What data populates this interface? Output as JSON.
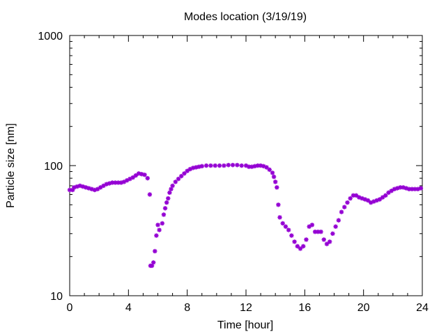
{
  "chart_data": {
    "type": "scatter",
    "title": "Modes location (3/19/19)",
    "xlabel": "Time [hour]",
    "ylabel": "Particle size [nm]",
    "xlim": [
      0,
      24
    ],
    "ylim": [
      10,
      1000
    ],
    "y_scale": "log",
    "x_ticks": [
      0,
      4,
      8,
      12,
      16,
      20,
      24
    ],
    "x_tick_labels": [
      "0",
      "4",
      "8",
      "12",
      "16",
      "20",
      "24"
    ],
    "y_ticks": [
      10,
      100,
      1000
    ],
    "y_tick_labels": [
      "10",
      "100",
      "1000"
    ],
    "marker": "asterisk",
    "color": "#9400d3",
    "grid": false,
    "series": [
      {
        "values": [
          [
            0.0,
            65
          ],
          [
            0.2,
            65
          ],
          [
            0.3,
            68
          ],
          [
            0.5,
            69
          ],
          [
            0.7,
            70
          ],
          [
            0.9,
            69
          ],
          [
            1.1,
            68
          ],
          [
            1.3,
            67
          ],
          [
            1.5,
            66
          ],
          [
            1.7,
            65
          ],
          [
            1.9,
            66
          ],
          [
            2.1,
            68
          ],
          [
            2.3,
            70
          ],
          [
            2.5,
            72
          ],
          [
            2.7,
            73
          ],
          [
            2.9,
            74
          ],
          [
            3.1,
            74
          ],
          [
            3.3,
            74
          ],
          [
            3.5,
            74
          ],
          [
            3.7,
            75
          ],
          [
            3.9,
            77
          ],
          [
            4.1,
            79
          ],
          [
            4.3,
            81
          ],
          [
            4.5,
            84
          ],
          [
            4.7,
            87
          ],
          [
            4.9,
            86
          ],
          [
            5.1,
            85
          ],
          [
            5.3,
            80
          ],
          [
            5.45,
            60
          ],
          [
            5.5,
            17
          ],
          [
            5.6,
            17
          ],
          [
            5.7,
            18
          ],
          [
            5.8,
            22
          ],
          [
            5.9,
            29
          ],
          [
            6.0,
            35
          ],
          [
            6.1,
            32
          ],
          [
            6.3,
            36
          ],
          [
            6.4,
            42
          ],
          [
            6.5,
            47
          ],
          [
            6.6,
            52
          ],
          [
            6.7,
            56
          ],
          [
            6.8,
            62
          ],
          [
            6.9,
            66
          ],
          [
            7.0,
            70
          ],
          [
            7.2,
            75
          ],
          [
            7.4,
            79
          ],
          [
            7.6,
            83
          ],
          [
            7.8,
            87
          ],
          [
            8.0,
            91
          ],
          [
            8.2,
            94
          ],
          [
            8.4,
            96
          ],
          [
            8.6,
            97
          ],
          [
            8.8,
            98
          ],
          [
            9.0,
            99
          ],
          [
            9.3,
            100
          ],
          [
            9.6,
            100
          ],
          [
            9.9,
            100
          ],
          [
            10.2,
            100
          ],
          [
            10.5,
            100
          ],
          [
            10.8,
            101
          ],
          [
            11.1,
            101
          ],
          [
            11.4,
            101
          ],
          [
            11.7,
            100
          ],
          [
            12.0,
            100
          ],
          [
            12.2,
            98
          ],
          [
            12.4,
            98
          ],
          [
            12.6,
            99
          ],
          [
            12.8,
            100
          ],
          [
            13.0,
            100
          ],
          [
            13.2,
            99
          ],
          [
            13.4,
            97
          ],
          [
            13.6,
            93
          ],
          [
            13.8,
            88
          ],
          [
            13.9,
            82
          ],
          [
            14.0,
            75
          ],
          [
            14.1,
            68
          ],
          [
            14.2,
            50
          ],
          [
            14.3,
            40
          ],
          [
            14.5,
            36
          ],
          [
            14.7,
            34
          ],
          [
            14.9,
            32
          ],
          [
            15.1,
            29
          ],
          [
            15.3,
            26
          ],
          [
            15.5,
            24
          ],
          [
            15.7,
            23
          ],
          [
            15.9,
            24
          ],
          [
            16.1,
            27
          ],
          [
            16.3,
            34
          ],
          [
            16.5,
            35
          ],
          [
            16.7,
            31
          ],
          [
            16.9,
            31
          ],
          [
            17.1,
            31
          ],
          [
            17.3,
            27
          ],
          [
            17.5,
            25
          ],
          [
            17.7,
            26
          ],
          [
            17.9,
            30
          ],
          [
            18.1,
            34
          ],
          [
            18.3,
            38
          ],
          [
            18.5,
            44
          ],
          [
            18.7,
            48
          ],
          [
            18.9,
            52
          ],
          [
            19.1,
            56
          ],
          [
            19.3,
            59
          ],
          [
            19.5,
            59
          ],
          [
            19.7,
            57
          ],
          [
            19.9,
            56
          ],
          [
            20.1,
            55
          ],
          [
            20.3,
            54
          ],
          [
            20.5,
            52
          ],
          [
            20.7,
            53
          ],
          [
            20.9,
            54
          ],
          [
            21.1,
            55
          ],
          [
            21.3,
            57
          ],
          [
            21.5,
            59
          ],
          [
            21.7,
            62
          ],
          [
            21.9,
            64
          ],
          [
            22.1,
            66
          ],
          [
            22.3,
            67
          ],
          [
            22.5,
            68
          ],
          [
            22.7,
            68
          ],
          [
            22.9,
            67
          ],
          [
            23.1,
            66
          ],
          [
            23.3,
            66
          ],
          [
            23.5,
            66
          ],
          [
            23.7,
            66
          ],
          [
            23.9,
            67
          ]
        ]
      }
    ]
  }
}
